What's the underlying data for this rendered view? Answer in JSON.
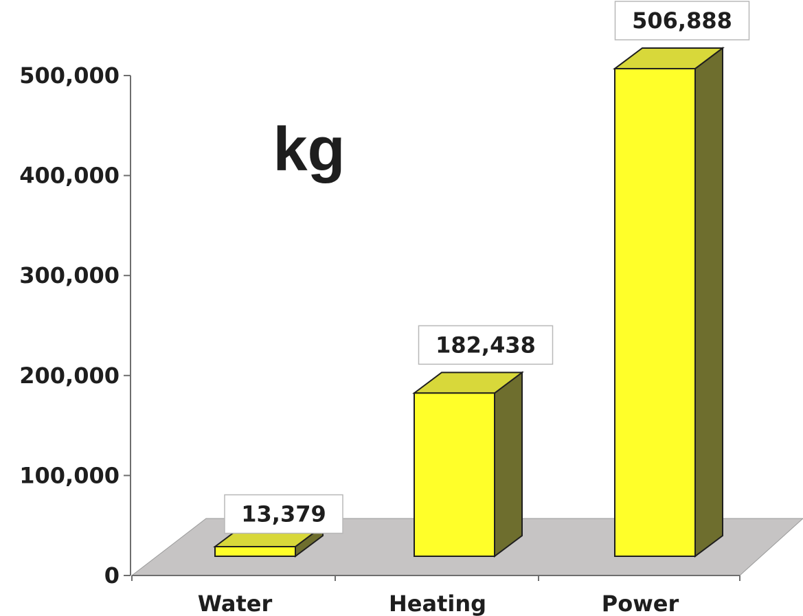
{
  "chart_data": {
    "type": "bar",
    "style": "3d",
    "categories": [
      "Water",
      "Heating",
      "Power"
    ],
    "values": [
      13379,
      182438,
      506888
    ],
    "data_labels": [
      "13,379",
      "182,438",
      "506,888"
    ],
    "y_ticks": [
      "0",
      "100,000",
      "200,000",
      "300,000",
      "400,000",
      "500,000"
    ],
    "ylim": [
      0,
      500000
    ],
    "unit_label": "kg",
    "grid": false,
    "legend": "none",
    "colors": {
      "bar_front": "#ffff29",
      "bar_top": "#d8d83a",
      "bar_side": "#6e6e2e",
      "floor": "#c6c4c4",
      "axis": "#6e6e6e",
      "text": "#1e1e1e"
    }
  }
}
